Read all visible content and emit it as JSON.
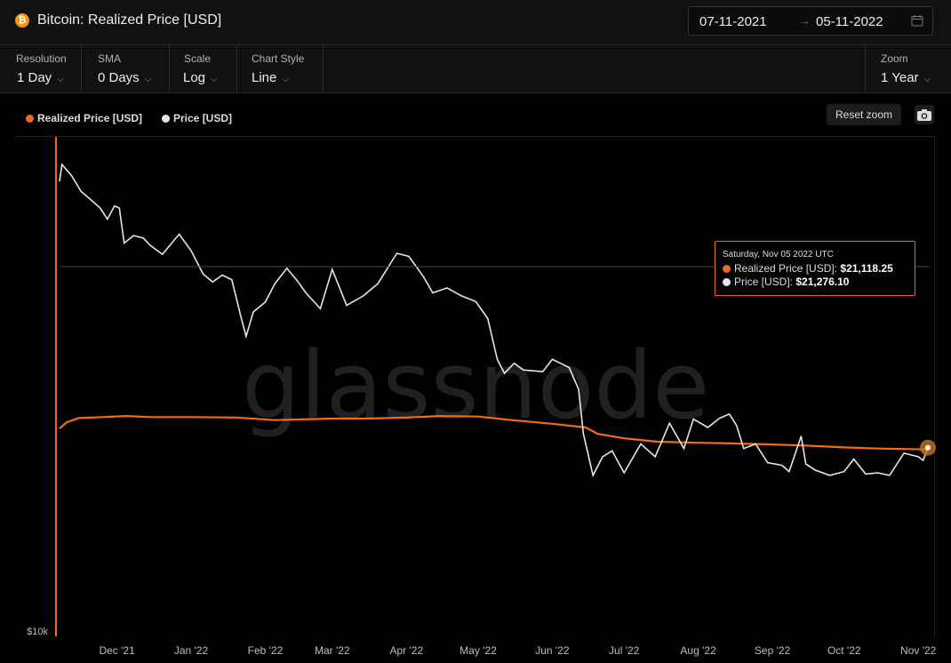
{
  "header": {
    "icon": "bitcoin-icon",
    "icon_glyph": "₿",
    "title": "Bitcoin: Realized Price [USD]",
    "date_from": "07-11-2021",
    "date_arrow": "→",
    "date_to": "05-11-2022",
    "calendar_icon": "calendar-icon"
  },
  "controls": {
    "resolution": {
      "label": "Resolution",
      "value": "1 Day"
    },
    "sma": {
      "label": "SMA",
      "value": "0 Days"
    },
    "scale": {
      "label": "Scale",
      "value": "Log"
    },
    "chart_style": {
      "label": "Chart Style",
      "value": "Line"
    },
    "zoom": {
      "label": "Zoom",
      "value": "1 Year"
    },
    "chevron": "⌵"
  },
  "toolbar": {
    "reset_zoom": "Reset zoom",
    "camera_icon": "camera-icon"
  },
  "colors": {
    "realized": "#f26b1d",
    "price": "#e6e6e6",
    "background": "#000000",
    "accent": "#f26b1d"
  },
  "watermark": "glassnode",
  "tooltip": {
    "date": "Saturday, Nov 05 2022 UTC",
    "realized_label": "Realized Price [USD]:",
    "realized_value": "$21,118.25",
    "price_label": "Price [USD]:",
    "price_value": "$21,276.10"
  },
  "chart_data": {
    "type": "line",
    "y_scale": "log",
    "ylim": [
      10000,
      75000
    ],
    "y_ticks": [
      {
        "value": 10000,
        "label": "$10k"
      }
    ],
    "x_ticks": [
      {
        "date": "2021-12-01",
        "label": "Dec '21"
      },
      {
        "date": "2022-01-01",
        "label": "Jan '22"
      },
      {
        "date": "2022-02-01",
        "label": "Feb '22"
      },
      {
        "date": "2022-03-01",
        "label": "Mar '22"
      },
      {
        "date": "2022-04-01",
        "label": "Apr '22"
      },
      {
        "date": "2022-05-01",
        "label": "May '22"
      },
      {
        "date": "2022-06-01",
        "label": "Jun '22"
      },
      {
        "date": "2022-07-01",
        "label": "Jul '22"
      },
      {
        "date": "2022-08-01",
        "label": "Aug '22"
      },
      {
        "date": "2022-09-01",
        "label": "Sep '22"
      },
      {
        "date": "2022-10-01",
        "label": "Oct '22"
      },
      {
        "date": "2022-11-01",
        "label": "Nov '22"
      }
    ],
    "xlim": [
      "2021-11-07",
      "2022-11-05"
    ],
    "legend": {
      "placement": "top-left"
    },
    "grid": false,
    "crosshair": {
      "date": "2022-11-05",
      "value": 21276.1
    },
    "series": [
      {
        "name": "Realized Price [USD]",
        "color": "#f26b1d",
        "points": [
          [
            "2021-11-07",
            23000
          ],
          [
            "2021-11-10",
            23600
          ],
          [
            "2021-11-15",
            24000
          ],
          [
            "2021-11-25",
            24100
          ],
          [
            "2021-12-05",
            24200
          ],
          [
            "2021-12-15",
            24100
          ],
          [
            "2022-01-01",
            24100
          ],
          [
            "2022-01-20",
            24050
          ],
          [
            "2022-02-05",
            23800
          ],
          [
            "2022-02-20",
            23900
          ],
          [
            "2022-03-01",
            23950
          ],
          [
            "2022-03-15",
            23950
          ],
          [
            "2022-04-01",
            24050
          ],
          [
            "2022-04-15",
            24200
          ],
          [
            "2022-05-01",
            24150
          ],
          [
            "2022-05-15",
            23800
          ],
          [
            "2022-06-01",
            23450
          ],
          [
            "2022-06-15",
            23100
          ],
          [
            "2022-06-20",
            22500
          ],
          [
            "2022-07-01",
            22100
          ],
          [
            "2022-07-15",
            21800
          ],
          [
            "2022-08-01",
            21700
          ],
          [
            "2022-08-15",
            21650
          ],
          [
            "2022-09-01",
            21550
          ],
          [
            "2022-09-15",
            21450
          ],
          [
            "2022-10-01",
            21300
          ],
          [
            "2022-10-15",
            21200
          ],
          [
            "2022-11-05",
            21118.25
          ]
        ]
      },
      {
        "name": "Price [USD]",
        "color": "#e6e6e6",
        "points": [
          [
            "2021-11-07",
            63000
          ],
          [
            "2021-11-08",
            67500
          ],
          [
            "2021-11-10",
            66000
          ],
          [
            "2021-11-12",
            64500
          ],
          [
            "2021-11-16",
            60500
          ],
          [
            "2021-11-20",
            58500
          ],
          [
            "2021-11-24",
            56500
          ],
          [
            "2021-11-27",
            54000
          ],
          [
            "2021-11-30",
            57000
          ],
          [
            "2021-12-02",
            56500
          ],
          [
            "2021-12-04",
            49000
          ],
          [
            "2021-12-08",
            50500
          ],
          [
            "2021-12-12",
            50000
          ],
          [
            "2021-12-15",
            48500
          ],
          [
            "2021-12-20",
            46800
          ],
          [
            "2021-12-27",
            50800
          ],
          [
            "2022-01-01",
            47500
          ],
          [
            "2022-01-06",
            43200
          ],
          [
            "2022-01-10",
            41800
          ],
          [
            "2022-01-14",
            43000
          ],
          [
            "2022-01-18",
            42200
          ],
          [
            "2022-01-22",
            36000
          ],
          [
            "2022-01-24",
            33500
          ],
          [
            "2022-01-27",
            37000
          ],
          [
            "2022-02-01",
            38500
          ],
          [
            "2022-02-05",
            41500
          ],
          [
            "2022-02-10",
            44200
          ],
          [
            "2022-02-14",
            42200
          ],
          [
            "2022-02-18",
            40000
          ],
          [
            "2022-02-24",
            37500
          ],
          [
            "2022-03-01",
            44000
          ],
          [
            "2022-03-07",
            38000
          ],
          [
            "2022-03-14",
            39500
          ],
          [
            "2022-03-20",
            41500
          ],
          [
            "2022-03-28",
            47000
          ],
          [
            "2022-04-02",
            46400
          ],
          [
            "2022-04-08",
            42800
          ],
          [
            "2022-04-12",
            40000
          ],
          [
            "2022-04-18",
            40800
          ],
          [
            "2022-04-24",
            39500
          ],
          [
            "2022-04-30",
            38600
          ],
          [
            "2022-05-05",
            36000
          ],
          [
            "2022-05-09",
            30500
          ],
          [
            "2022-05-12",
            28800
          ],
          [
            "2022-05-16",
            30000
          ],
          [
            "2022-05-20",
            29200
          ],
          [
            "2022-05-28",
            29000
          ],
          [
            "2022-06-01",
            30500
          ],
          [
            "2022-06-08",
            29500
          ],
          [
            "2022-06-12",
            27000
          ],
          [
            "2022-06-14",
            22500
          ],
          [
            "2022-06-18",
            19000
          ],
          [
            "2022-06-22",
            20500
          ],
          [
            "2022-06-26",
            21000
          ],
          [
            "2022-07-01",
            19200
          ],
          [
            "2022-07-08",
            21600
          ],
          [
            "2022-07-14",
            20500
          ],
          [
            "2022-07-20",
            23500
          ],
          [
            "2022-07-26",
            21200
          ],
          [
            "2022-07-30",
            23900
          ],
          [
            "2022-08-05",
            23100
          ],
          [
            "2022-08-10",
            24000
          ],
          [
            "2022-08-14",
            24400
          ],
          [
            "2022-08-17",
            23300
          ],
          [
            "2022-08-20",
            21200
          ],
          [
            "2022-08-25",
            21600
          ],
          [
            "2022-08-30",
            20000
          ],
          [
            "2022-09-05",
            19800
          ],
          [
            "2022-09-08",
            19300
          ],
          [
            "2022-09-13",
            22300
          ],
          [
            "2022-09-15",
            19900
          ],
          [
            "2022-09-19",
            19400
          ],
          [
            "2022-09-25",
            19000
          ],
          [
            "2022-10-01",
            19300
          ],
          [
            "2022-10-05",
            20300
          ],
          [
            "2022-10-10",
            19100
          ],
          [
            "2022-10-15",
            19200
          ],
          [
            "2022-10-20",
            19000
          ],
          [
            "2022-10-26",
            20800
          ],
          [
            "2022-10-30",
            20600
          ],
          [
            "2022-11-01",
            20500
          ],
          [
            "2022-11-03",
            20200
          ],
          [
            "2022-11-05",
            21276.1
          ]
        ]
      }
    ]
  }
}
